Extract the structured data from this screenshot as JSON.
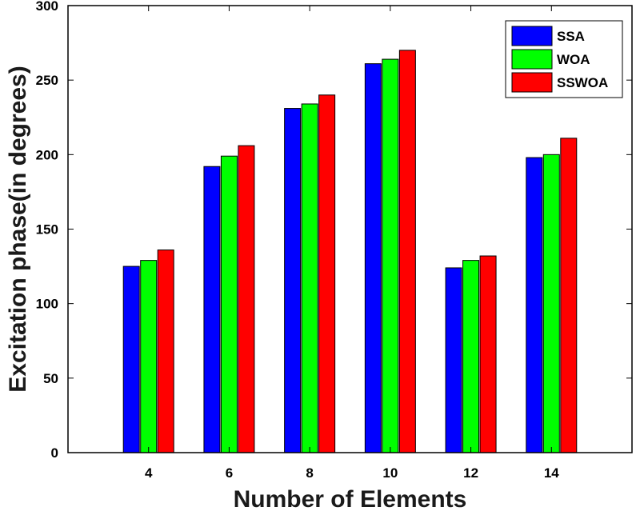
{
  "chart_data": {
    "type": "bar",
    "title": "",
    "xlabel": "Number of Elements",
    "ylabel": "Excitation phase(in degrees)",
    "categories": [
      "4",
      "6",
      "8",
      "10",
      "12",
      "14"
    ],
    "ylim": [
      0,
      300
    ],
    "yticks": [
      0,
      50,
      100,
      150,
      200,
      250,
      300
    ],
    "grid": false,
    "legend_position": "top-right",
    "series": [
      {
        "name": "SSA",
        "color": "#0000ff",
        "values": [
          125,
          192,
          231,
          261,
          124,
          198
        ]
      },
      {
        "name": "WOA",
        "color": "#00ff00",
        "values": [
          129,
          199,
          234,
          264,
          129,
          200
        ]
      },
      {
        "name": "SSWOA",
        "color": "#ff0000",
        "values": [
          136,
          206,
          240,
          270,
          132,
          211
        ]
      }
    ]
  }
}
